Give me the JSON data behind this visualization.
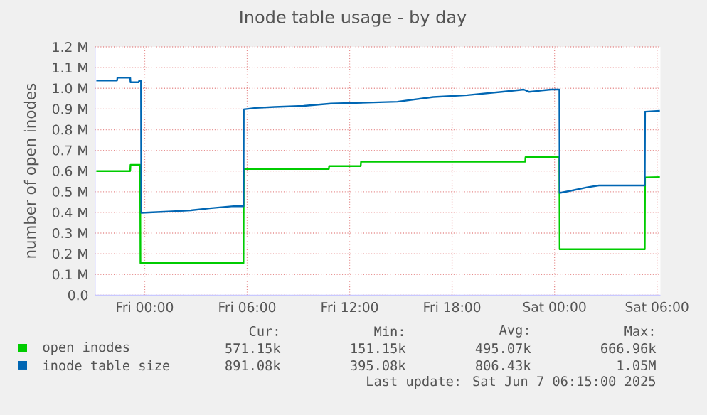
{
  "chart_data": {
    "type": "line",
    "title": "Inode table usage - by day",
    "ylabel": "number of open inodes",
    "xlim": [
      "2025-06-05T21:06",
      "2025-06-07T06:12"
    ],
    "xticks": [
      {
        "value": "2025-06-06T00:00",
        "label": "Fri 00:00"
      },
      {
        "value": "2025-06-06T06:00",
        "label": "Fri 06:00"
      },
      {
        "value": "2025-06-06T12:00",
        "label": "Fri 12:00"
      },
      {
        "value": "2025-06-06T18:00",
        "label": "Fri 18:00"
      },
      {
        "value": "2025-06-07T00:00",
        "label": "Sat 00:00"
      },
      {
        "value": "2025-06-07T06:00",
        "label": "Sat 06:00"
      }
    ],
    "ylim": [
      0,
      1200000
    ],
    "yticks": [
      {
        "value": 0,
        "label": "0.0"
      },
      {
        "value": 100000,
        "label": "0.1 M"
      },
      {
        "value": 200000,
        "label": "0.2 M"
      },
      {
        "value": 300000,
        "label": "0.3 M"
      },
      {
        "value": 400000,
        "label": "0.4 M"
      },
      {
        "value": 500000,
        "label": "0.5 M"
      },
      {
        "value": 600000,
        "label": "0.6 M"
      },
      {
        "value": 700000,
        "label": "0.7 M"
      },
      {
        "value": 800000,
        "label": "0.8 M"
      },
      {
        "value": 900000,
        "label": "0.9 M"
      },
      {
        "value": 1000000,
        "label": "1.0 M"
      },
      {
        "value": 1100000,
        "label": "1.1 M"
      },
      {
        "value": 1200000,
        "label": "1.2 M"
      }
    ],
    "grid": true,
    "legend": "bottom",
    "marker": "none",
    "line_style": "solid",
    "series": [
      {
        "name": "open inodes",
        "color": "#00cc00",
        "x": [
          "2025-06-05T21:10",
          "2025-06-05T23:09",
          "2025-06-05T23:10",
          "2025-06-05T23:44",
          "2025-06-05T23:45",
          "2025-06-06T05:47",
          "2025-06-06T05:48",
          "2025-06-06T10:47",
          "2025-06-06T10:48",
          "2025-06-06T12:39",
          "2025-06-06T12:40",
          "2025-06-06T22:17",
          "2025-06-06T22:18",
          "2025-06-07T00:17",
          "2025-06-07T00:18",
          "2025-06-07T05:17",
          "2025-06-07T05:18",
          "2025-06-07T06:10"
        ],
        "values": [
          600000,
          600000,
          630000,
          630000,
          155000,
          155000,
          610000,
          610000,
          624000,
          624000,
          645000,
          645000,
          667000,
          667000,
          222000,
          222000,
          569000,
          571000
        ]
      },
      {
        "name": "inode table size",
        "color": "#0066b3",
        "x": [
          "2025-06-05T21:10",
          "2025-06-05T22:23",
          "2025-06-05T22:24",
          "2025-06-05T23:09",
          "2025-06-05T23:10",
          "2025-06-05T23:39",
          "2025-06-05T23:40",
          "2025-06-05T23:47",
          "2025-06-05T23:48",
          "2025-06-06T01:36",
          "2025-06-06T02:42",
          "2025-06-06T03:48",
          "2025-06-06T05:12",
          "2025-06-06T05:47",
          "2025-06-06T05:48",
          "2025-06-06T06:30",
          "2025-06-06T07:36",
          "2025-06-06T09:18",
          "2025-06-06T10:54",
          "2025-06-06T14:48",
          "2025-06-06T16:54",
          "2025-06-06T18:54",
          "2025-06-06T20:54",
          "2025-06-06T22:12",
          "2025-06-06T22:30",
          "2025-06-06T23:48",
          "2025-06-07T00:17",
          "2025-06-07T00:18",
          "2025-06-07T01:06",
          "2025-06-07T01:54",
          "2025-06-07T02:36",
          "2025-06-07T05:17",
          "2025-06-07T05:18",
          "2025-06-07T06:10"
        ],
        "values": [
          1038000,
          1038000,
          1051000,
          1051000,
          1029000,
          1029000,
          1035000,
          1035000,
          398000,
          405000,
          410000,
          420000,
          430000,
          430000,
          898000,
          905000,
          910000,
          915000,
          926000,
          935000,
          958000,
          967000,
          983000,
          994000,
          983000,
          994000,
          994000,
          494000,
          507000,
          521000,
          530000,
          530000,
          887000,
          891000
        ]
      }
    ],
    "annotations": [
      "Cur:",
      "Min:",
      "Avg:",
      "Max:",
      "571.15k",
      "151.15k",
      "495.07k",
      "666.96k",
      "891.08k",
      "395.08k",
      "806.43k",
      "1.05M",
      "Last update:  Sat Jun  7 06:15:00 2025"
    ]
  }
}
